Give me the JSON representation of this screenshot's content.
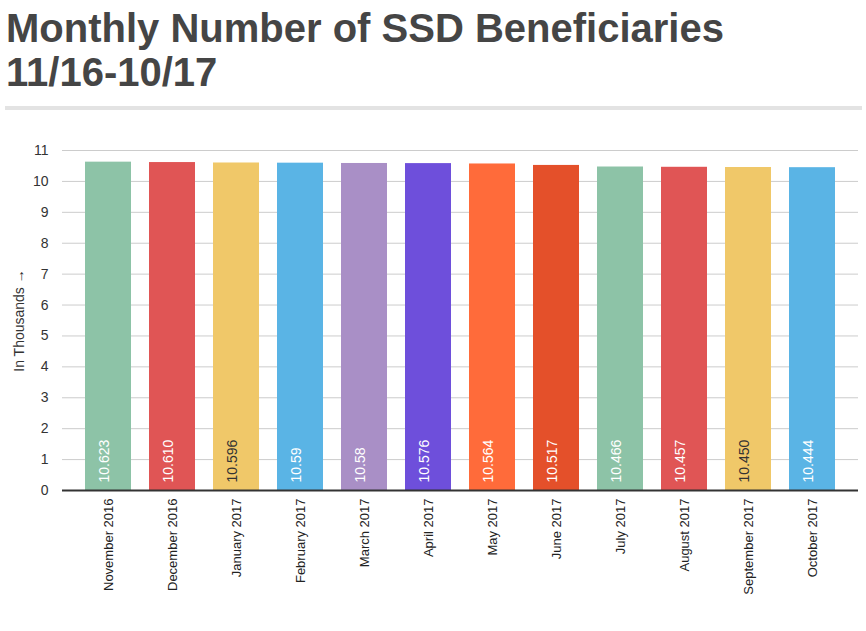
{
  "chart_data": {
    "type": "bar",
    "title": "Monthly Number of SSD Beneficiaries 11/16-10/17",
    "y_label": "In Thousands",
    "categories": [
      "November 2016",
      "December 2016",
      "January 2017",
      "February 2017",
      "March 2017",
      "April 2017",
      "May 2017",
      "June 2017",
      "July 2017",
      "August 2017",
      "September 2017",
      "October 2017"
    ],
    "values": [
      10.623,
      10.61,
      10.596,
      10.59,
      10.58,
      10.576,
      10.564,
      10.517,
      10.466,
      10.457,
      10.45,
      10.444
    ],
    "value_labels": [
      "10.623",
      "10.610",
      "10.596",
      "10.59",
      "10.58",
      "10.576",
      "10.564",
      "10.517",
      "10.466",
      "10.457",
      "10.450",
      "10.444"
    ],
    "colors": [
      "#8dc3a7",
      "#e05555",
      "#f0c869",
      "#5ab4e5",
      "#a98fc6",
      "#6e4fdb",
      "#ff6b3a",
      "#e4502a",
      "#8dc3a7",
      "#e05555",
      "#f0c869",
      "#5ab4e5"
    ],
    "ylim": [
      0,
      11
    ],
    "yticks": [
      0,
      1,
      2,
      3,
      4,
      5,
      6,
      7,
      8,
      9,
      10,
      11
    ],
    "grid": true,
    "data_labels": true
  }
}
